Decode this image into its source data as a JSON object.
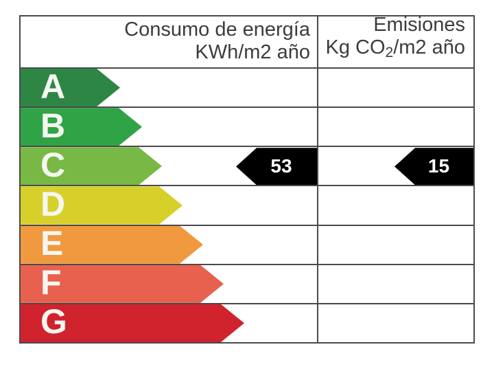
{
  "header": {
    "left": {
      "line1": "Consumo de energía",
      "line2": "KWh/m2 año"
    },
    "right": {
      "line1": "Emisiones",
      "line2_prefix": "Kg CO",
      "line2_sub": "2",
      "line2_suffix": "/m2 año"
    }
  },
  "ratings": [
    {
      "letter": "A",
      "color": "#2e8645",
      "arrow_width": 145
    },
    {
      "letter": "B",
      "color": "#30a347",
      "arrow_width": 177
    },
    {
      "letter": "C",
      "color": "#78b844",
      "arrow_width": 206
    },
    {
      "letter": "D",
      "color": "#d7d02b",
      "arrow_width": 236
    },
    {
      "letter": "E",
      "color": "#f0993e",
      "arrow_width": 266
    },
    {
      "letter": "F",
      "color": "#e7614e",
      "arrow_width": 296
    },
    {
      "letter": "G",
      "color": "#d0232e",
      "arrow_width": 326
    }
  ],
  "indicators": {
    "rating_row": "C",
    "arrow_color": "#000000",
    "consumption_value": "53",
    "emissions_value": "15"
  },
  "chart_data": {
    "type": "bar",
    "title": "",
    "columns": [
      "Consumo de energía KWh/m2 año",
      "Emisiones Kg CO2/m2 año"
    ],
    "categories": [
      "A",
      "B",
      "C",
      "D",
      "E",
      "F",
      "G"
    ],
    "category_colors": [
      "#2e8645",
      "#30a347",
      "#78b844",
      "#d7d02b",
      "#f0993e",
      "#e7614e",
      "#d0232e"
    ],
    "series": [
      {
        "name": "Consumo de energía KWh/m2 año",
        "rating": "C",
        "value": 53
      },
      {
        "name": "Emisiones Kg CO2/m2 año",
        "rating": "C",
        "value": 15
      }
    ],
    "legend_position": "none",
    "grid": false,
    "orientation": "horizontal"
  }
}
